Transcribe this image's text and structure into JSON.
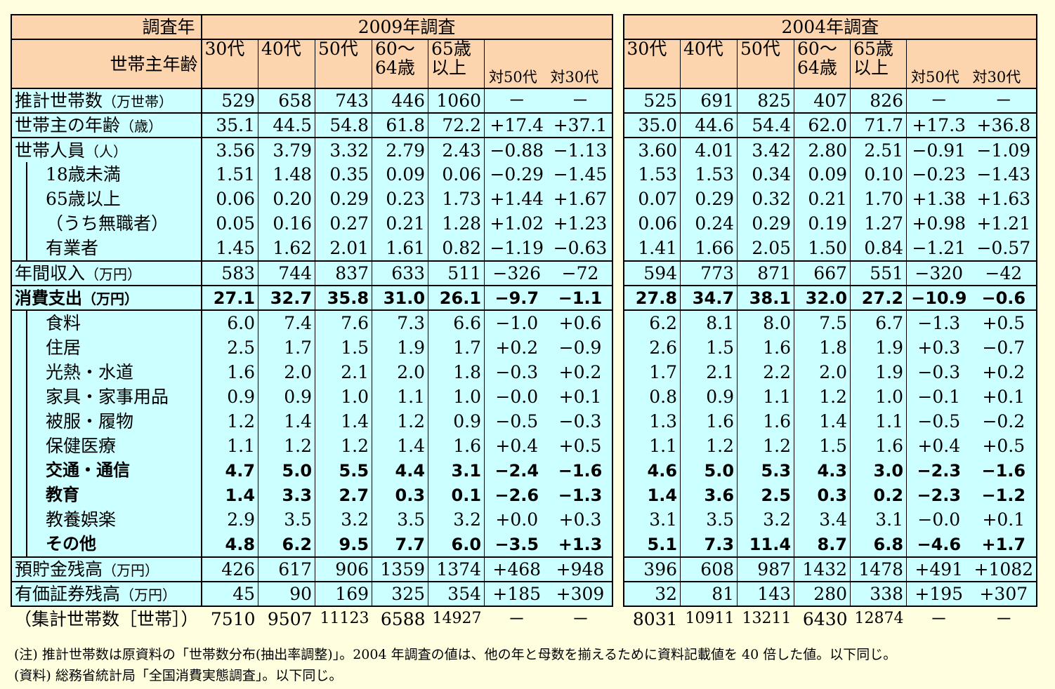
{
  "header": {
    "year_label": "調査年",
    "age_label": "世帯主年齢",
    "survey_2009": "2009年調査",
    "survey_2004": "2004年調査",
    "cols": [
      "30代",
      "40代",
      "50代",
      "60～",
      "65歳",
      "対50代",
      "対30代"
    ],
    "cols_line2": [
      "",
      "",
      "",
      "64歳",
      "以上",
      "",
      ""
    ]
  },
  "rows": [
    {
      "label": "推計世帯数",
      "unit": "（万世帯）",
      "v2009": [
        "529",
        "658",
        "743",
        "446",
        "1060",
        "－",
        "－"
      ],
      "v2004": [
        "525",
        "691",
        "825",
        "407",
        "826",
        "－",
        "－"
      ]
    },
    {
      "label": "世帯主の年齢",
      "unit": "（歳）",
      "v2009": [
        "35.1",
        "44.5",
        "54.8",
        "61.8",
        "72.2",
        "+17.4",
        "+37.1"
      ],
      "v2004": [
        "35.0",
        "44.6",
        "54.4",
        "62.0",
        "71.7",
        "+17.3",
        "+36.8"
      ]
    },
    {
      "label": "世帯人員",
      "unit": "（人）",
      "v2009": [
        "3.56",
        "3.79",
        "3.32",
        "2.79",
        "2.43",
        "−0.88",
        "−1.13"
      ],
      "v2004": [
        "3.60",
        "4.01",
        "3.42",
        "2.80",
        "2.51",
        "−0.91",
        "−1.09"
      ]
    },
    {
      "label": "18歳未満",
      "unit": "",
      "v2009": [
        "1.51",
        "1.48",
        "0.35",
        "0.09",
        "0.06",
        "−0.29",
        "−1.45"
      ],
      "v2004": [
        "1.53",
        "1.53",
        "0.34",
        "0.09",
        "0.10",
        "−0.23",
        "−1.43"
      ]
    },
    {
      "label": "65歳以上",
      "unit": "",
      "v2009": [
        "0.06",
        "0.20",
        "0.29",
        "0.23",
        "1.73",
        "+1.44",
        "+1.67"
      ],
      "v2004": [
        "0.07",
        "0.29",
        "0.32",
        "0.21",
        "1.70",
        "+1.38",
        "+1.63"
      ]
    },
    {
      "label": "（うち無職者）",
      "unit": "",
      "v2009": [
        "0.05",
        "0.16",
        "0.27",
        "0.21",
        "1.28",
        "+1.02",
        "+1.23"
      ],
      "v2004": [
        "0.06",
        "0.24",
        "0.29",
        "0.19",
        "1.27",
        "+0.98",
        "+1.21"
      ]
    },
    {
      "label": "有業者",
      "unit": "",
      "v2009": [
        "1.45",
        "1.62",
        "2.01",
        "1.61",
        "0.82",
        "−1.19",
        "−0.63"
      ],
      "v2004": [
        "1.41",
        "1.66",
        "2.05",
        "1.50",
        "0.84",
        "−1.21",
        "−0.57"
      ]
    },
    {
      "label": "年間収入",
      "unit": "（万円）",
      "v2009": [
        "583",
        "744",
        "837",
        "633",
        "511",
        "−326",
        "−72"
      ],
      "v2004": [
        "594",
        "773",
        "871",
        "667",
        "551",
        "−320",
        "−42"
      ]
    },
    {
      "label": "消費支出",
      "unit": "（万円）",
      "v2009": [
        "27.1",
        "32.7",
        "35.8",
        "31.0",
        "26.1",
        "−9.7",
        "−1.1"
      ],
      "v2004": [
        "27.8",
        "34.7",
        "38.1",
        "32.0",
        "27.2",
        "−10.9",
        "−0.6"
      ]
    },
    {
      "label": "食料",
      "unit": "",
      "v2009": [
        "6.0",
        "7.4",
        "7.6",
        "7.3",
        "6.6",
        "−1.0",
        "+0.6"
      ],
      "v2004": [
        "6.2",
        "8.1",
        "8.0",
        "7.5",
        "6.7",
        "−1.3",
        "+0.5"
      ]
    },
    {
      "label": "住居",
      "unit": "",
      "v2009": [
        "2.5",
        "1.7",
        "1.5",
        "1.9",
        "1.7",
        "+0.2",
        "−0.9"
      ],
      "v2004": [
        "2.6",
        "1.5",
        "1.6",
        "1.8",
        "1.9",
        "+0.3",
        "−0.7"
      ]
    },
    {
      "label": "光熱・水道",
      "unit": "",
      "v2009": [
        "1.6",
        "2.0",
        "2.1",
        "2.0",
        "1.8",
        "−0.3",
        "+0.2"
      ],
      "v2004": [
        "1.7",
        "2.1",
        "2.2",
        "2.0",
        "1.9",
        "−0.3",
        "+0.2"
      ]
    },
    {
      "label": "家具・家事用品",
      "unit": "",
      "v2009": [
        "0.9",
        "0.9",
        "1.0",
        "1.1",
        "1.0",
        "−0.0",
        "+0.1"
      ],
      "v2004": [
        "0.8",
        "0.9",
        "1.1",
        "1.2",
        "1.0",
        "−0.1",
        "+0.1"
      ]
    },
    {
      "label": "被服・履物",
      "unit": "",
      "v2009": [
        "1.2",
        "1.4",
        "1.4",
        "1.2",
        "0.9",
        "−0.5",
        "−0.3"
      ],
      "v2004": [
        "1.3",
        "1.6",
        "1.6",
        "1.4",
        "1.1",
        "−0.5",
        "−0.2"
      ]
    },
    {
      "label": "保健医療",
      "unit": "",
      "v2009": [
        "1.1",
        "1.2",
        "1.2",
        "1.4",
        "1.6",
        "+0.4",
        "+0.5"
      ],
      "v2004": [
        "1.1",
        "1.2",
        "1.2",
        "1.5",
        "1.6",
        "+0.4",
        "+0.5"
      ]
    },
    {
      "label": "交通・通信",
      "unit": "",
      "v2009": [
        "4.7",
        "5.0",
        "5.5",
        "4.4",
        "3.1",
        "−2.4",
        "−1.6"
      ],
      "v2004": [
        "4.6",
        "5.0",
        "5.3",
        "4.3",
        "3.0",
        "−2.3",
        "−1.6"
      ]
    },
    {
      "label": "教育",
      "unit": "",
      "v2009": [
        "1.4",
        "3.3",
        "2.7",
        "0.3",
        "0.1",
        "−2.6",
        "−1.3"
      ],
      "v2004": [
        "1.4",
        "3.6",
        "2.5",
        "0.3",
        "0.2",
        "−2.3",
        "−1.2"
      ]
    },
    {
      "label": "教養娯楽",
      "unit": "",
      "v2009": [
        "2.9",
        "3.5",
        "3.2",
        "3.5",
        "3.2",
        "+0.0",
        "+0.3"
      ],
      "v2004": [
        "3.1",
        "3.5",
        "3.2",
        "3.4",
        "3.1",
        "−0.0",
        "+0.1"
      ]
    },
    {
      "label": "その他",
      "unit": "",
      "v2009": [
        "4.8",
        "6.2",
        "9.5",
        "7.7",
        "6.0",
        "−3.5",
        "+1.3"
      ],
      "v2004": [
        "5.1",
        "7.3",
        "11.4",
        "8.7",
        "6.8",
        "−4.6",
        "+1.7"
      ]
    },
    {
      "label": "預貯金残高",
      "unit": "（万円）",
      "v2009": [
        "426",
        "617",
        "906",
        "1359",
        "1374",
        "+468",
        "+948"
      ],
      "v2004": [
        "396",
        "608",
        "987",
        "1432",
        "1478",
        "+491",
        "+1082"
      ]
    },
    {
      "label": "有価証券残高",
      "unit": "（万円）",
      "v2009": [
        "45",
        "90",
        "169",
        "325",
        "354",
        "+185",
        "+309"
      ],
      "v2004": [
        "32",
        "81",
        "143",
        "280",
        "338",
        "+195",
        "+307"
      ]
    }
  ],
  "count_row": {
    "label": "（集計世帯数［世帯］）",
    "v2009": [
      "7510",
      "9507",
      "11123",
      "6588",
      "14927",
      "－",
      "－"
    ],
    "v2004": [
      "8031",
      "10911",
      "13211",
      "6430",
      "12874",
      "－",
      "－"
    ]
  },
  "notes": {
    "note1": "(注) 推計世帯数は原資料の「世帯数分布(抽出率調整)」。2004 年調査の値は、他の年と母数を揃えるために資料記載値を 40 倍した値。以下同じ。",
    "note2": "(資料) 総務省統計局「全国消費実態調査」。以下同じ。"
  }
}
